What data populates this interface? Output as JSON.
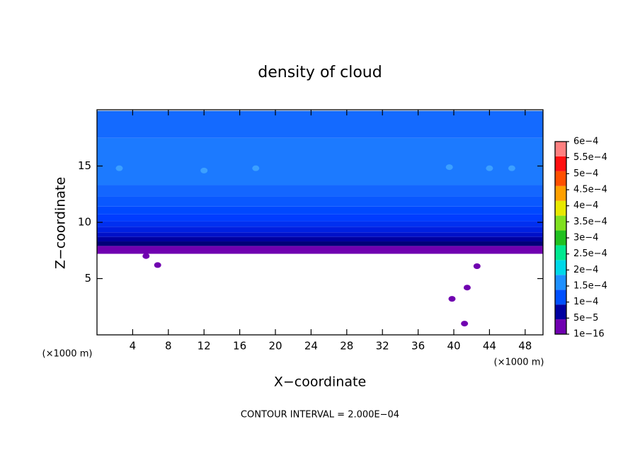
{
  "chart_data": {
    "type": "contour",
    "title": "density of cloud",
    "x_label": "X−coordinate",
    "y_label": "Z−coordinate",
    "x_unit_left": "(×1000 m)",
    "x_unit_right": "(×1000 m)",
    "footnote": "CONTOUR INTERVAL = 2.000E−04",
    "xlim": [
      0,
      50
    ],
    "ylim": [
      0,
      20
    ],
    "xticks": [
      4,
      8,
      12,
      16,
      20,
      24,
      28,
      32,
      36,
      40,
      44,
      48
    ],
    "yticks": [
      5,
      10,
      15
    ],
    "layers": {
      "z": [
        7.2,
        7.9,
        8.3,
        8.7,
        9.1,
        9.6,
        10.1,
        10.7,
        11.4,
        12.3,
        13.3,
        17.5,
        19.9
      ],
      "colors": [
        "#7000b0",
        "#000078",
        "#0000a0",
        "#0010c8",
        "#0020e0",
        "#0030f0",
        "#003cff",
        "#0048ff",
        "#0a58ff",
        "#1466ff",
        "#1c7aff",
        "#146aff"
      ]
    },
    "blobs": {
      "x": [
        6.8,
        5.5,
        39.8,
        41.2,
        41.5,
        42.6,
        17.8,
        12.0,
        39.5,
        2.5,
        44.0,
        46.5
      ],
      "z": [
        6.2,
        7.0,
        3.2,
        1.0,
        4.2,
        6.1,
        14.8,
        14.6,
        14.9,
        14.8,
        14.8,
        14.8
      ],
      "colors": [
        "#7000b0",
        "#7000b0",
        "#7000b0",
        "#7000b0",
        "#7000b0",
        "#7000b0",
        "#3ca0ff",
        "#3ca0ff",
        "#3ca0ff",
        "#3ca0ff",
        "#3ca0ff",
        "#3ca0ff"
      ]
    },
    "colorbar": {
      "levels": [
        {
          "value": 1e-16,
          "label": "1e−16"
        },
        {
          "value": 5e-05,
          "label": "5e−5"
        },
        {
          "value": 0.0001,
          "label": "1e−4"
        },
        {
          "value": 0.00015,
          "label": "1.5e−4"
        },
        {
          "value": 0.0002,
          "label": "2e−4"
        },
        {
          "value": 0.00025,
          "label": "2.5e−4"
        },
        {
          "value": 0.0003,
          "label": "3e−4"
        },
        {
          "value": 0.00035,
          "label": "3.5e−4"
        },
        {
          "value": 0.0004,
          "label": "4e−4"
        },
        {
          "value": 0.00045,
          "label": "4.5e−4"
        },
        {
          "value": 0.0005,
          "label": "5e−4"
        },
        {
          "value": 0.00055,
          "label": "5.5e−4"
        },
        {
          "value": 0.0006,
          "label": "6e−4"
        }
      ],
      "colors": [
        "#7000b0",
        "#0000a0",
        "#0050ff",
        "#1e90ff",
        "#00d8e8",
        "#00e890",
        "#20c020",
        "#80e020",
        "#e8e800",
        "#ffa000",
        "#ff5000",
        "#ff1010",
        "#ff8080"
      ]
    }
  }
}
